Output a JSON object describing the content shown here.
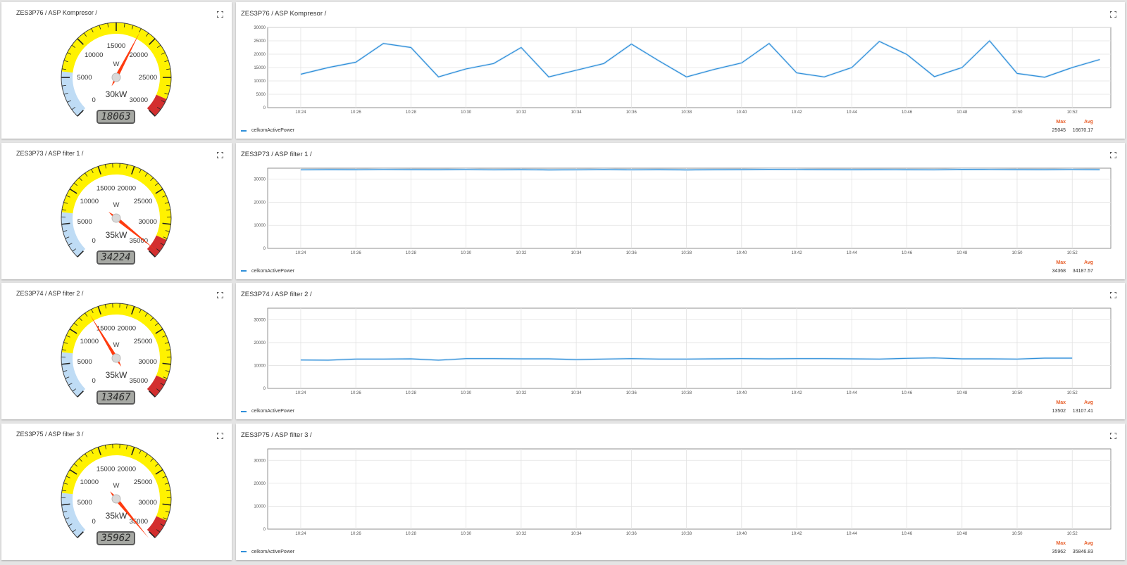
{
  "rows": [
    {
      "gauge": {
        "title": "ZES3P76 / ASP Kompresor /",
        "unit_label": "W",
        "max_label": "30kW",
        "reading": "18063",
        "value": 18063,
        "max": 30000,
        "ticks": [
          "0",
          "5000",
          "10000",
          "15000",
          "20000",
          "25000",
          "30000"
        ]
      },
      "chart": {
        "title": "ZES3P76 / ASP Kompresor /",
        "legend": "celkomActivePower",
        "max_label": "Max",
        "avg_label": "Avg",
        "max_value": "25045",
        "avg_value": "16670.17"
      }
    },
    {
      "gauge": {
        "title": "ZES3P73 / ASP filter 1 /",
        "unit_label": "W",
        "max_label": "35kW",
        "reading": "34224",
        "value": 34224,
        "max": 35000,
        "ticks": [
          "0",
          "5000",
          "10000",
          "15000",
          "20000",
          "25000",
          "30000",
          "35000"
        ]
      },
      "chart": {
        "title": "ZES3P73 / ASP filter 1 /",
        "legend": "celkomActivePower",
        "max_label": "Max",
        "avg_label": "Avg",
        "max_value": "34368",
        "avg_value": "34187.57"
      }
    },
    {
      "gauge": {
        "title": "ZES3P74 / ASP filter 2 /",
        "unit_label": "W",
        "max_label": "35kW",
        "reading": "13467",
        "value": 13467,
        "max": 35000,
        "ticks": [
          "0",
          "5000",
          "10000",
          "15000",
          "20000",
          "25000",
          "30000",
          "35000"
        ]
      },
      "chart": {
        "title": "ZES3P74 / ASP filter 2 /",
        "legend": "celkomActivePower",
        "max_label": "Max",
        "avg_label": "Avg",
        "max_value": "13502",
        "avg_value": "13107.41"
      }
    },
    {
      "gauge": {
        "title": "ZES3P75 / ASP filter 3 /",
        "unit_label": "W",
        "max_label": "35kW",
        "reading": "35962",
        "value": 35962,
        "max": 35000,
        "ticks": [
          "0",
          "5000",
          "10000",
          "15000",
          "20000",
          "25000",
          "30000",
          "35000"
        ]
      },
      "chart": {
        "title": "ZES3P75 / ASP filter 3 /",
        "legend": "celkomActivePower",
        "max_label": "Max",
        "avg_label": "Avg",
        "max_value": "35962",
        "avg_value": "35846.83"
      }
    }
  ],
  "chart_data": [
    {
      "type": "line",
      "title": "ZES3P76 / ASP Kompresor /",
      "x_tick_labels": [
        "10:24",
        "10:26",
        "10:28",
        "10:30",
        "10:32",
        "10:34",
        "10:36",
        "10:38",
        "10:40",
        "10:42",
        "10:44",
        "10:46",
        "10:48",
        "10:50",
        "10:52"
      ],
      "y_tick_labels": [
        "0",
        "5000",
        "10000",
        "15000",
        "20000",
        "25000",
        "30000"
      ],
      "ylim": [
        0,
        30000
      ],
      "xlim": [
        "10:22:48",
        "10:53:24"
      ],
      "grid": true,
      "legend_position": "bottom-left",
      "series": [
        {
          "name": "celkomActivePower",
          "color": "#2f8fd9",
          "x": [
            "10:24",
            "10:25",
            "10:26",
            "10:27",
            "10:28",
            "10:29",
            "10:30",
            "10:31",
            "10:32",
            "10:33",
            "10:34",
            "10:35",
            "10:36",
            "10:37",
            "10:38",
            "10:39",
            "10:40",
            "10:41",
            "10:42",
            "10:43",
            "10:44",
            "10:45",
            "10:46",
            "10:47",
            "10:48",
            "10:49",
            "10:50",
            "10:51",
            "10:52",
            "10:53"
          ],
          "y": [
            12500,
            15000,
            17000,
            24000,
            22500,
            11500,
            14500,
            16500,
            22500,
            11500,
            14000,
            16500,
            23800,
            17500,
            11500,
            14300,
            16700,
            24000,
            13000,
            11500,
            15000,
            24800,
            19900,
            11600,
            15000,
            25000,
            12800,
            11400,
            15000,
            18000
          ]
        }
      ]
    },
    {
      "type": "line",
      "title": "ZES3P73 / ASP filter 1 /",
      "x_tick_labels": [
        "10:24",
        "10:26",
        "10:28",
        "10:30",
        "10:32",
        "10:34",
        "10:36",
        "10:38",
        "10:40",
        "10:42",
        "10:44",
        "10:46",
        "10:48",
        "10:50",
        "10:52"
      ],
      "y_tick_labels": [
        "0",
        "10000",
        "20000",
        "30000"
      ],
      "ylim": [
        0,
        34800
      ],
      "xlim": [
        "10:22:48",
        "10:53:24"
      ],
      "grid": true,
      "legend_position": "bottom-left",
      "series": [
        {
          "name": "celkomActivePower",
          "color": "#2f8fd9",
          "x": [
            "10:24",
            "10:25",
            "10:26",
            "10:27",
            "10:28",
            "10:29",
            "10:30",
            "10:31",
            "10:32",
            "10:33",
            "10:34",
            "10:35",
            "10:36",
            "10:37",
            "10:38",
            "10:39",
            "10:40",
            "10:41",
            "10:42",
            "10:43",
            "10:44",
            "10:45",
            "10:46",
            "10:47",
            "10:48",
            "10:49",
            "10:50",
            "10:51",
            "10:52",
            "10:53"
          ],
          "y": [
            34100,
            34200,
            34150,
            34250,
            34200,
            34150,
            34250,
            34100,
            34200,
            34050,
            34100,
            34250,
            34100,
            34200,
            34050,
            34150,
            34200,
            34300,
            34250,
            34200,
            34150,
            34200,
            34150,
            34100,
            34300,
            34250,
            34200,
            34150,
            34250,
            34150
          ]
        }
      ]
    },
    {
      "type": "line",
      "title": "ZES3P74 / ASP filter 2 /",
      "x_tick_labels": [
        "10:24",
        "10:26",
        "10:28",
        "10:30",
        "10:32",
        "10:34",
        "10:36",
        "10:38",
        "10:40",
        "10:42",
        "10:44",
        "10:46",
        "10:48",
        "10:50",
        "10:52"
      ],
      "y_tick_labels": [
        "0",
        "10000",
        "20000",
        "30000"
      ],
      "ylim": [
        0,
        35000
      ],
      "xlim": [
        "10:22:48",
        "10:53:24"
      ],
      "grid": true,
      "legend_position": "bottom-left",
      "series": [
        {
          "name": "celkomActivePower",
          "color": "#2f8fd9",
          "x": [
            "10:24",
            "10:25",
            "10:26",
            "10:27",
            "10:28",
            "10:29",
            "10:30",
            "10:31",
            "10:32",
            "10:33",
            "10:34",
            "10:35",
            "10:36",
            "10:37",
            "10:38",
            "10:39",
            "10:40",
            "10:41",
            "10:42",
            "10:43",
            "10:44",
            "10:45",
            "10:46",
            "10:47",
            "10:48",
            "10:49",
            "10:50",
            "10:51",
            "10:52"
          ],
          "y": [
            12400,
            12300,
            12800,
            12800,
            12900,
            12300,
            13000,
            13000,
            12900,
            12900,
            12600,
            12800,
            13000,
            12800,
            12800,
            12900,
            13000,
            12900,
            13000,
            13000,
            12900,
            12800,
            13100,
            13300,
            12900,
            12900,
            12800,
            13200,
            13200
          ]
        }
      ]
    },
    {
      "type": "line",
      "title": "ZES3P75 / ASP filter 3 /",
      "x_tick_labels": [
        "10:24",
        "10:26",
        "10:28",
        "10:30",
        "10:32",
        "10:34",
        "10:36",
        "10:38",
        "10:40",
        "10:42",
        "10:44",
        "10:46",
        "10:48",
        "10:50",
        "10:52"
      ],
      "y_tick_labels": [
        "0",
        "10000",
        "20000",
        "30000"
      ],
      "ylim": [
        0,
        35000
      ],
      "xlim": [
        "10:22:48",
        "10:53:24"
      ],
      "grid": true,
      "legend_position": "bottom-left",
      "series": [
        {
          "name": "celkomActivePower",
          "color": "#2f8fd9",
          "x": [],
          "y": []
        }
      ]
    }
  ],
  "colors": {
    "zone_low": "#bfdcf5",
    "zone_mid": "#fff200",
    "zone_high": "#d32f2f",
    "needle": "#ff3b0f",
    "series": "#2f8fd9",
    "stat_label": "#e8602c"
  }
}
